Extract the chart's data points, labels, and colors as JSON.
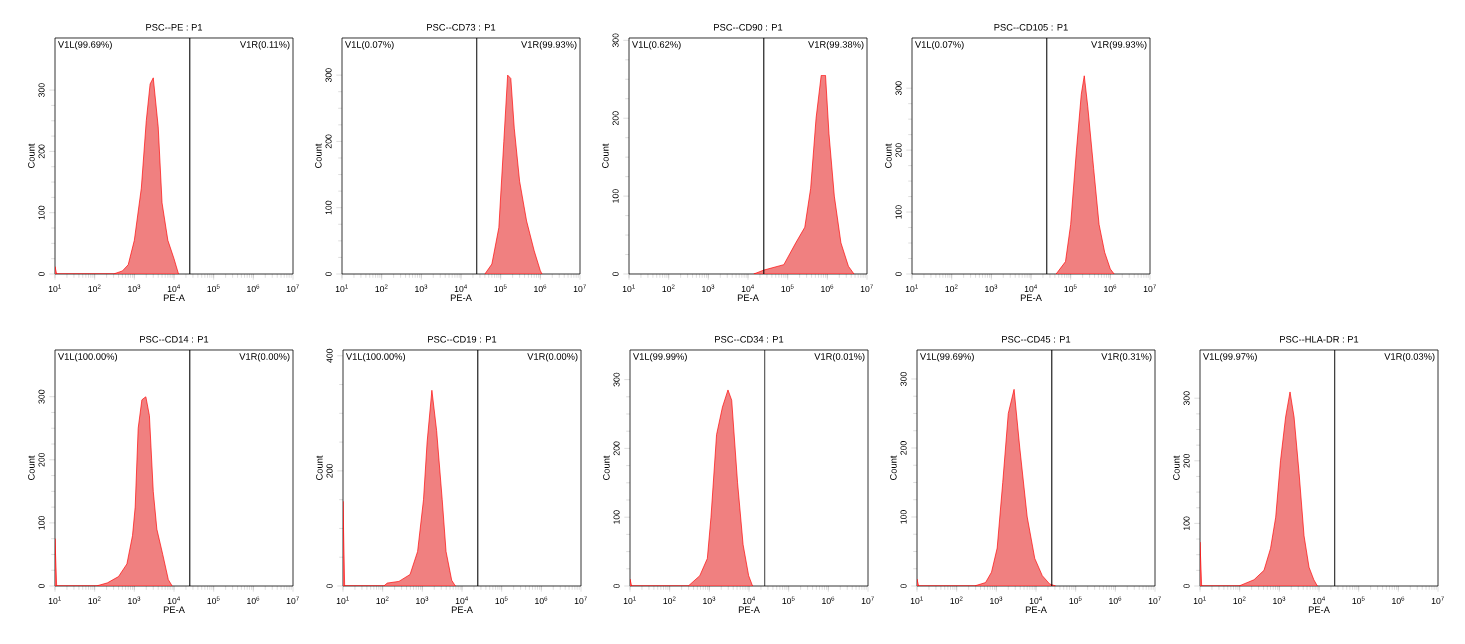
{
  "chart_data": [
    {
      "type": "area",
      "title": "PSC--PE : P1",
      "xlabel": "PE-A",
      "ylabel": "Count",
      "log": "x",
      "color": "#f08080",
      "xlim": [
        10,
        10000000
      ],
      "ylim": [
        0,
        385
      ],
      "yticks": [
        0,
        100,
        200,
        300
      ],
      "xticks": [
        {
          "value": 10,
          "label": "10$^{1}$"
        },
        {
          "value": 100,
          "label": "10$^{2}$"
        },
        {
          "value": 1000,
          "label": "10$^{3}$"
        },
        {
          "value": 10000,
          "label": "10$^{4}$"
        },
        {
          "value": 100000,
          "label": "10$^{5}$"
        },
        {
          "value": 1000000,
          "label": "10$^{6}$"
        },
        {
          "value": 10000000,
          "label": "10$^{7}$"
        }
      ],
      "ref_lines": [
        {
          "axis": "x",
          "value": 25000
        }
      ],
      "annotations": [
        "V1L(99.69%)",
        "V1R(0.11%)"
      ],
      "x": [
        10,
        11,
        300,
        500,
        700,
        1000,
        1500,
        2000,
        2500,
        3000,
        4000,
        5000,
        7000,
        10000,
        13000
      ],
      "values": [
        12,
        0,
        0,
        5,
        15,
        55,
        140,
        250,
        310,
        320,
        240,
        116,
        55,
        25,
        0
      ]
    },
    {
      "type": "area",
      "title": "PSC--CD73 : P1",
      "xlabel": "PE-A",
      "ylabel": "Count",
      "log": "x",
      "color": "#f08080",
      "xlim": [
        10,
        10000000
      ],
      "ylim": [
        0,
        356
      ],
      "yticks": [
        0,
        100,
        200,
        300
      ],
      "xticks": [
        {
          "value": 10,
          "label": "10$^{1}$"
        },
        {
          "value": 100,
          "label": "10$^{2}$"
        },
        {
          "value": 1000,
          "label": "10$^{3}$"
        },
        {
          "value": 10000,
          "label": "10$^{4}$"
        },
        {
          "value": 100000,
          "label": "10$^{5}$"
        },
        {
          "value": 1000000,
          "label": "10$^{6}$"
        },
        {
          "value": 10000000,
          "label": "10$^{7}$"
        }
      ],
      "ref_lines": [
        {
          "axis": "x",
          "value": 25000
        }
      ],
      "annotations": [
        "V1L(0.07%)",
        "V1R(99.93%)"
      ],
      "x": [
        40000,
        60000,
        90000,
        120000,
        150000,
        180000,
        220000,
        300000,
        450000,
        700000,
        1000000,
        1100000
      ],
      "values": [
        0,
        15,
        70,
        200,
        300,
        295,
        220,
        140,
        80,
        35,
        5,
        0
      ]
    },
    {
      "type": "area",
      "title": "PSC--CD90 : P1",
      "xlabel": "PE-A",
      "ylabel": "Count",
      "log": "x",
      "color": "#f08080",
      "xlim": [
        10,
        10000000
      ],
      "ylim": [
        0,
        303
      ],
      "yticks": [
        0,
        100,
        200,
        300
      ],
      "xticks": [
        {
          "value": 10,
          "label": "10$^{1}$"
        },
        {
          "value": 100,
          "label": "10$^{2}$"
        },
        {
          "value": 1000,
          "label": "10$^{3}$"
        },
        {
          "value": 10000,
          "label": "10$^{4}$"
        },
        {
          "value": 100000,
          "label": "10$^{5}$"
        },
        {
          "value": 1000000,
          "label": "10$^{6}$"
        },
        {
          "value": 10000000,
          "label": "10$^{7}$"
        }
      ],
      "ref_lines": [
        {
          "axis": "x",
          "value": 25000
        }
      ],
      "annotations": [
        "V1L(0.62%)",
        "V1R(99.38%)"
      ],
      "x": [
        14000,
        25000,
        80000,
        160000,
        270000,
        380000,
        520000,
        700000,
        900000,
        1100000,
        1500000,
        2200000,
        3400000,
        4700000
      ],
      "values": [
        0,
        5,
        12,
        40,
        60,
        110,
        200,
        255,
        255,
        180,
        100,
        40,
        10,
        0
      ]
    },
    {
      "type": "area",
      "title": "PSC--CD105 : P1",
      "xlabel": "PE-A",
      "ylabel": "Count",
      "log": "x",
      "color": "#f08080",
      "xlim": [
        10,
        10000000
      ],
      "ylim": [
        0,
        381
      ],
      "yticks": [
        0,
        100,
        200,
        300
      ],
      "xticks": [
        {
          "value": 10,
          "label": "10$^{1}$"
        },
        {
          "value": 100,
          "label": "10$^{2}$"
        },
        {
          "value": 1000,
          "label": "10$^{3}$"
        },
        {
          "value": 10000,
          "label": "10$^{4}$"
        },
        {
          "value": 100000,
          "label": "10$^{5}$"
        },
        {
          "value": 1000000,
          "label": "10$^{6}$"
        },
        {
          "value": 10000000,
          "label": "10$^{7}$"
        }
      ],
      "ref_lines": [
        {
          "axis": "x",
          "value": 25000
        }
      ],
      "annotations": [
        "V1L(0.07%)",
        "V1R(99.93%)"
      ],
      "x": [
        43000,
        74000,
        100000,
        140000,
        185000,
        220000,
        270000,
        380000,
        520000,
        720000,
        1000000,
        1250000
      ],
      "values": [
        0,
        20,
        80,
        200,
        290,
        320,
        270,
        170,
        80,
        35,
        8,
        0
      ]
    },
    {
      "type": "area",
      "title": "PSC--CD14 : P1",
      "xlabel": "PE-A",
      "ylabel": "Count",
      "log": "x",
      "color": "#f08080",
      "xlim": [
        10,
        10000000
      ],
      "ylim": [
        0,
        374
      ],
      "yticks": [
        0,
        100,
        200,
        300
      ],
      "xticks": [
        {
          "value": 10,
          "label": "10$^{1}$"
        },
        {
          "value": 100,
          "label": "10$^{2}$"
        },
        {
          "value": 1000,
          "label": "10$^{3}$"
        },
        {
          "value": 10000,
          "label": "10$^{4}$"
        },
        {
          "value": 100000,
          "label": "10$^{5}$"
        },
        {
          "value": 1000000,
          "label": "10$^{6}$"
        },
        {
          "value": 10000000,
          "label": "10$^{7}$"
        }
      ],
      "ref_lines": [
        {
          "axis": "x",
          "value": 25000
        }
      ],
      "annotations": [
        "V1L(100.00%)",
        "V1R(0.00%)"
      ],
      "x": [
        10,
        11,
        110,
        210,
        400,
        650,
        900,
        1050,
        1250,
        1550,
        1950,
        2400,
        3000,
        3700,
        5200,
        7200,
        9000
      ],
      "values": [
        75,
        0,
        0,
        5,
        15,
        35,
        80,
        125,
        250,
        295,
        300,
        270,
        150,
        90,
        50,
        10,
        0
      ]
    },
    {
      "type": "area",
      "title": "PSC--CD19 : P1",
      "xlabel": "PE-A",
      "ylabel": "Count",
      "log": "x",
      "color": "#f08080",
      "xlim": [
        10,
        10000000
      ],
      "ylim": [
        0,
        410
      ],
      "yticks": [
        0,
        200,
        400
      ],
      "xticks": [
        {
          "value": 10,
          "label": "10$^{1}$"
        },
        {
          "value": 100,
          "label": "10$^{2}$"
        },
        {
          "value": 1000,
          "label": "10$^{3}$"
        },
        {
          "value": 10000,
          "label": "10$^{4}$"
        },
        {
          "value": 100000,
          "label": "10$^{5}$"
        },
        {
          "value": 1000000,
          "label": "10$^{6}$"
        },
        {
          "value": 10000000,
          "label": "10$^{7}$"
        }
      ],
      "ref_lines": [
        {
          "axis": "x",
          "value": 25000
        }
      ],
      "annotations": [
        "V1L(100.00%)",
        "V1R(0.00%)"
      ],
      "x": [
        10,
        11,
        107,
        130,
        257,
        490,
        760,
        1070,
        1320,
        1740,
        2290,
        3170,
        3960,
        5500,
        6800
      ],
      "values": [
        147,
        0,
        0,
        5,
        8,
        20,
        60,
        150,
        250,
        340,
        270,
        150,
        60,
        10,
        0
      ]
    },
    {
      "type": "area",
      "title": "PSC--CD34 : P1",
      "xlabel": "PE-A",
      "ylabel": "Count",
      "log": "x",
      "color": "#f08080",
      "xlim": [
        10,
        10000000
      ],
      "ylim": [
        0,
        343
      ],
      "yticks": [
        0,
        100,
        200,
        300
      ],
      "xticks": [
        {
          "value": 10,
          "label": "10$^{1}$"
        },
        {
          "value": 100,
          "label": "10$^{2}$"
        },
        {
          "value": 1000,
          "label": "10$^{3}$"
        },
        {
          "value": 10000,
          "label": "10$^{4}$"
        },
        {
          "value": 100000,
          "label": "10$^{5}$"
        },
        {
          "value": 1000000,
          "label": "10$^{6}$"
        },
        {
          "value": 10000000,
          "label": "10$^{7}$"
        }
      ],
      "ref_lines": [
        {
          "axis": "x",
          "value": 25000
        }
      ],
      "annotations": [
        "V1L(99.99%)",
        "V1R(0.01%)"
      ],
      "x": [
        10,
        11,
        295,
        575,
        890,
        1100,
        1520,
        2140,
        2950,
        3660,
        5150,
        7100,
        9800,
        12300
      ],
      "values": [
        10,
        0,
        0,
        15,
        40,
        100,
        220,
        260,
        285,
        270,
        150,
        60,
        15,
        0
      ]
    },
    {
      "type": "area",
      "title": "PSC--CD45 : P1",
      "xlabel": "PE-A",
      "ylabel": "Count",
      "log": "x",
      "color": "#f08080",
      "xlim": [
        10,
        10000000
      ],
      "ylim": [
        0,
        342
      ],
      "yticks": [
        0,
        100,
        200,
        300
      ],
      "xticks": [
        {
          "value": 10,
          "label": "10$^{1}$"
        },
        {
          "value": 100,
          "label": "10$^{2}$"
        },
        {
          "value": 1000,
          "label": "10$^{3}$"
        },
        {
          "value": 10000,
          "label": "10$^{4}$"
        },
        {
          "value": 100000,
          "label": "10$^{5}$"
        },
        {
          "value": 1000000,
          "label": "10$^{6}$"
        },
        {
          "value": 10000000,
          "label": "10$^{7}$"
        }
      ],
      "ref_lines": [
        {
          "axis": "x",
          "value": 25000
        }
      ],
      "annotations": [
        "V1L(99.69%)",
        "V1R(0.31%)"
      ],
      "x": [
        10,
        11,
        280,
        535,
        755,
        1050,
        1450,
        2000,
        2800,
        3900,
        6000,
        9300,
        14400,
        22000,
        31000
      ],
      "values": [
        10,
        0,
        0,
        5,
        20,
        55,
        150,
        250,
        285,
        200,
        100,
        40,
        15,
        3,
        0
      ]
    },
    {
      "type": "area",
      "title": "PSC--HLA-DR : P1",
      "xlabel": "PE-A",
      "ylabel": "Count",
      "log": "x",
      "color": "#f08080",
      "xlim": [
        10,
        10000000
      ],
      "ylim": [
        0,
        377
      ],
      "yticks": [
        0,
        100,
        200,
        300
      ],
      "xticks": [
        {
          "value": 10,
          "label": "10$^{1}$"
        },
        {
          "value": 100,
          "label": "10$^{2}$"
        },
        {
          "value": 1000,
          "label": "10$^{3}$"
        },
        {
          "value": 10000,
          "label": "10$^{4}$"
        },
        {
          "value": 100000,
          "label": "10$^{5}$"
        },
        {
          "value": 1000000,
          "label": "10$^{6}$"
        },
        {
          "value": 10000000,
          "label": "10$^{7}$"
        }
      ],
      "ref_lines": [
        {
          "axis": "x",
          "value": 25000
        }
      ],
      "annotations": [
        "V1L(99.97%)",
        "V1R(0.03%)"
      ],
      "x": [
        10,
        11,
        96,
        230,
        410,
        600,
        810,
        1070,
        1440,
        1860,
        2350,
        3150,
        4200,
        5600,
        7400,
        9100
      ],
      "values": [
        70,
        0,
        0,
        10,
        25,
        60,
        110,
        200,
        270,
        310,
        270,
        180,
        80,
        30,
        10,
        0
      ]
    }
  ]
}
